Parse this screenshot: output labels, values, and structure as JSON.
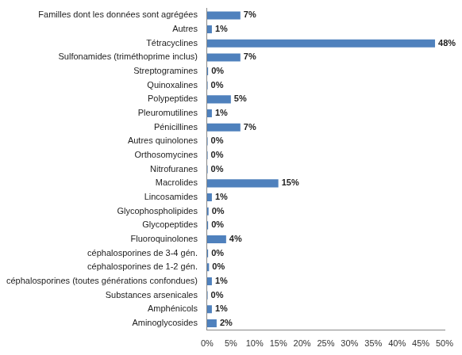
{
  "chart_data": {
    "type": "bar",
    "orientation": "horizontal",
    "categories": [
      "Familles dont les données sont agrégées",
      "Autres",
      "Tétracyclines",
      "Sulfonamides (triméthoprime inclus)",
      "Streptogramines",
      "Quinoxalines",
      "Polypeptides",
      "Pleuromutilines",
      "Pénicillines",
      "Autres quinolones",
      "Orthosomycines",
      "Nitrofuranes",
      "Macrolides",
      "Lincosamides",
      "Glycophospholipides",
      "Glycopeptides",
      "Fluoroquinolones",
      "céphalosporines de 3-4 gén.",
      "céphalosporines de 1-2 gén.",
      "céphalosporines (toutes générations confondues)",
      "Substances arsenicales",
      "Amphénicols",
      "Aminoglycosides"
    ],
    "values": [
      7,
      1,
      48,
      7,
      0.2,
      0.1,
      5,
      1,
      7,
      0.1,
      0.1,
      0.1,
      15,
      1,
      0.3,
      0.2,
      4,
      0.2,
      0.4,
      1,
      0.1,
      1,
      2
    ],
    "value_labels": [
      "7%",
      "1%",
      "48%",
      "7%",
      "0%",
      "0%",
      "5%",
      "1%",
      "7%",
      "0%",
      "0%",
      "0%",
      "15%",
      "1%",
      "0%",
      "0%",
      "4%",
      "0%",
      "0%",
      "1%",
      "0%",
      "1%",
      "2%"
    ],
    "color": "#4f81bd",
    "xlim": [
      0,
      50
    ],
    "xticks": [
      {
        "value": 0,
        "label": "0%"
      },
      {
        "value": 5,
        "label": "5%"
      },
      {
        "value": 10,
        "label": "10%"
      },
      {
        "value": 15,
        "label": "15%"
      },
      {
        "value": 20,
        "label": "20%"
      },
      {
        "value": 25,
        "label": "25%"
      },
      {
        "value": 30,
        "label": "30%"
      },
      {
        "value": 35,
        "label": "35%"
      },
      {
        "value": 40,
        "label": "40%"
      },
      {
        "value": 45,
        "label": "45%"
      },
      {
        "value": 50,
        "label": "50%"
      }
    ],
    "grid": false,
    "data_labels": true
  }
}
